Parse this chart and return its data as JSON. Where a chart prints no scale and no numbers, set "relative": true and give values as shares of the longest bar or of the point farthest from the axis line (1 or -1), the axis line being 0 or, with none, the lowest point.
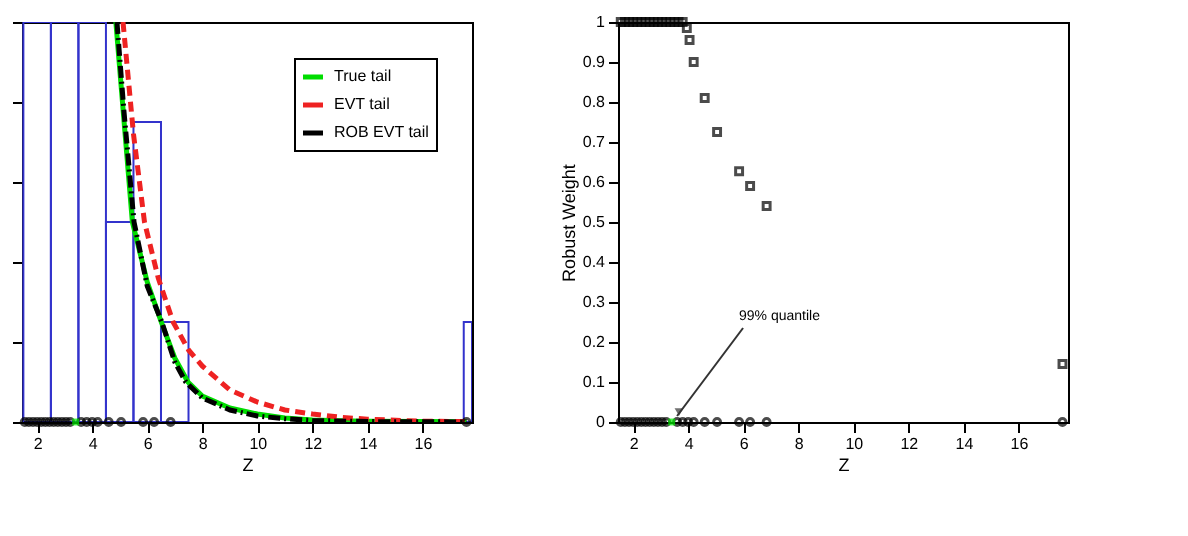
{
  "chart_data": [
    {
      "type": "line",
      "relative": true,
      "xlabel": "Z",
      "xlim": [
        1.45,
        17.8
      ],
      "xticks": [
        2,
        4,
        6,
        8,
        10,
        12,
        14,
        16
      ],
      "tick_labels": "x",
      "grid": false,
      "legend": "top right",
      "series": [
        {
          "type": "histogram",
          "color": "#3333cc",
          "bins": [
            1.5,
            2.5,
            3.5,
            4.5,
            5.5,
            6.5,
            7.5
          ],
          "values": [
            1,
            1,
            1,
            0.5,
            0.75,
            0.25
          ]
        },
        {
          "type": "histogram",
          "color": "#3333cc",
          "bins": [
            17.5,
            17.8
          ],
          "values": [
            0.25
          ]
        },
        {
          "name": "True tail",
          "color": "#00dd00",
          "line_style": "solid",
          "x": [
            4.86,
            5.1,
            5.46,
            6.0,
            6.51,
            7.0,
            7.48,
            8.0,
            9.0,
            10.0,
            11.0,
            12.0,
            13.0,
            14.0,
            16.0,
            17.6
          ],
          "values": [
            1,
            0.8,
            0.5,
            0.35,
            0.25,
            0.16,
            0.1,
            0.065,
            0.035,
            0.02,
            0.01,
            0.005,
            0.003,
            0.002,
            0.001,
            0.0005
          ]
        },
        {
          "name": "EVT tail",
          "color": "#ee2222",
          "line_style": "dashed",
          "x": [
            5.12,
            5.5,
            5.9,
            6.4,
            6.94,
            7.5,
            8.0,
            9.0,
            10.0,
            11.0,
            12.0,
            13.0,
            14.0,
            16.0,
            17.6
          ],
          "values": [
            1,
            0.72,
            0.5,
            0.36,
            0.25,
            0.18,
            0.14,
            0.08,
            0.05,
            0.03,
            0.02,
            0.012,
            0.007,
            0.002,
            0.001
          ]
        },
        {
          "name": "ROB EVT tail",
          "color": "#000000",
          "line_style": "dashdot",
          "x": [
            4.9,
            5.15,
            5.52,
            6.0,
            6.53,
            7.0,
            7.4,
            8.0,
            9.0,
            10.0,
            11.0,
            12.0,
            14.0,
            16.0,
            17.6
          ],
          "values": [
            1,
            0.78,
            0.5,
            0.34,
            0.25,
            0.15,
            0.1,
            0.06,
            0.03,
            0.015,
            0.008,
            0.004,
            0.001,
            0.0005,
            0.0002
          ]
        },
        {
          "type": "scatter",
          "marker": "circle",
          "color": "#000000",
          "x": [
            1.55,
            1.7,
            1.85,
            2.0,
            2.15,
            2.3,
            2.45,
            2.6,
            2.75,
            2.9,
            3.05,
            3.2,
            3.6,
            3.8,
            4.0,
            4.2,
            4.6,
            5.05,
            5.85,
            6.25,
            6.85,
            17.6
          ],
          "values": [
            0,
            0,
            0,
            0,
            0,
            0,
            0,
            0,
            0,
            0,
            0,
            0,
            0,
            0,
            0,
            0,
            0,
            0,
            0,
            0,
            0,
            0
          ]
        },
        {
          "type": "scatter",
          "marker": "square",
          "color": "#00ee00",
          "x": [
            3.4
          ],
          "values": [
            0
          ]
        }
      ]
    },
    {
      "type": "scatter",
      "xlabel": "Z",
      "ylabel": "Robust Weight",
      "xlim": [
        1.45,
        17.8
      ],
      "xticks": [
        2,
        4,
        6,
        8,
        10,
        12,
        14,
        16
      ],
      "ylim": [
        0,
        1
      ],
      "yticks": [
        0,
        0.1,
        0.2,
        0.3,
        0.4,
        0.5,
        0.6,
        0.7,
        0.8,
        0.9,
        1
      ],
      "grid": false,
      "annotations": [
        {
          "text": "99% quantile",
          "x": 3.45,
          "y": 0
        }
      ],
      "series": [
        {
          "marker": "circle",
          "color": "#000000",
          "x": [
            1.55,
            1.7,
            1.85,
            2.0,
            2.15,
            2.3,
            2.45,
            2.6,
            2.75,
            2.9,
            3.05,
            3.2,
            3.6,
            3.8,
            4.0,
            4.2,
            4.6,
            5.05,
            5.85,
            6.25,
            6.85,
            17.6
          ],
          "values": [
            0,
            0,
            0,
            0,
            0,
            0,
            0,
            0,
            0,
            0,
            0,
            0,
            0,
            0,
            0,
            0,
            0,
            0,
            0,
            0,
            0,
            0
          ]
        },
        {
          "marker": "square",
          "color": "#000000",
          "x": [
            1.55,
            1.7,
            1.85,
            2.0,
            2.15,
            2.3,
            2.45,
            2.6,
            2.75,
            2.9,
            3.05,
            3.2,
            3.35,
            3.5,
            3.65,
            3.8,
            3.95,
            4.05,
            4.2,
            4.6,
            5.05,
            5.85,
            6.25,
            6.85,
            17.6
          ],
          "values": [
            1,
            1,
            1,
            1,
            1,
            1,
            1,
            1,
            1,
            1,
            1,
            1,
            1,
            1,
            1,
            1,
            0.985,
            0.955,
            0.9,
            0.81,
            0.725,
            0.627,
            0.59,
            0.54,
            0.145
          ]
        },
        {
          "marker": "square",
          "color": "#00ee00",
          "x": [
            3.4
          ],
          "values": [
            0
          ]
        }
      ]
    }
  ]
}
